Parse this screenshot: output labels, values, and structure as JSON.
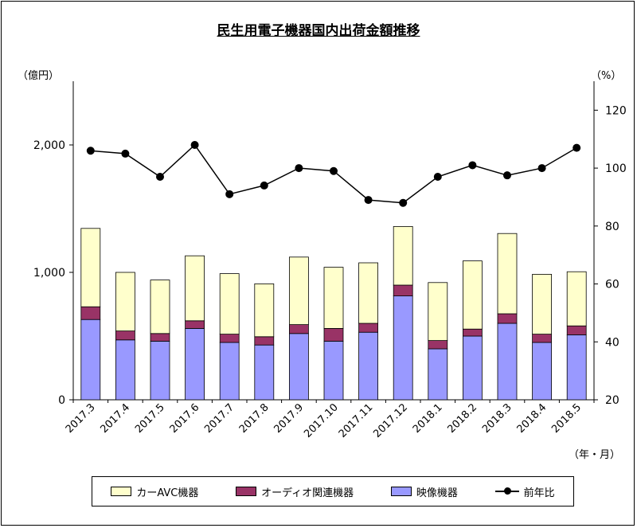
{
  "chart_data": {
    "type": "bar",
    "title": "民生用電子機器国内出荷金額推移",
    "left_unit": "（億円）",
    "right_unit": "（%）",
    "x_unit": "（年・月）",
    "categories": [
      "2017.3",
      "2017.4",
      "2017.5",
      "2017.6",
      "2017.7",
      "2017.8",
      "2017.9",
      "2017.10",
      "2017.11",
      "2017.12",
      "2018.1",
      "2018.2",
      "2018.3",
      "2018.4",
      "2018.5"
    ],
    "stack_series": [
      {
        "name": "映像機器",
        "color": "#9999ff",
        "values": [
          630,
          470,
          460,
          560,
          450,
          430,
          520,
          460,
          530,
          815,
          400,
          500,
          600,
          450,
          510
        ]
      },
      {
        "name": "オーディオ関連機器",
        "color": "#993366",
        "values": [
          100,
          70,
          60,
          60,
          65,
          65,
          70,
          100,
          70,
          85,
          65,
          55,
          75,
          65,
          70
        ]
      },
      {
        "name": "カーAVC機器",
        "color": "#ffffcc",
        "values": [
          615,
          460,
          420,
          510,
          475,
          415,
          530,
          480,
          475,
          460,
          455,
          535,
          630,
          470,
          425
        ]
      }
    ],
    "line_series": {
      "name": "前年比",
      "color": "#000000",
      "values": [
        106,
        105,
        97,
        108,
        91,
        94,
        100,
        99,
        89,
        88,
        97,
        101,
        97.5,
        100,
        107
      ]
    },
    "left_axis": {
      "ylim": [
        0,
        2500
      ],
      "ticks": [
        0,
        1000,
        2000
      ],
      "tick_labels": [
        "0",
        "1,000",
        "2,000"
      ]
    },
    "right_axis": {
      "ylim": [
        20,
        130
      ],
      "ticks": [
        20,
        40,
        60,
        80,
        100,
        120
      ],
      "tick_labels": [
        "20",
        "40",
        "60",
        "80",
        "100",
        "120"
      ]
    },
    "legend_position": "bottom",
    "grid": false
  }
}
